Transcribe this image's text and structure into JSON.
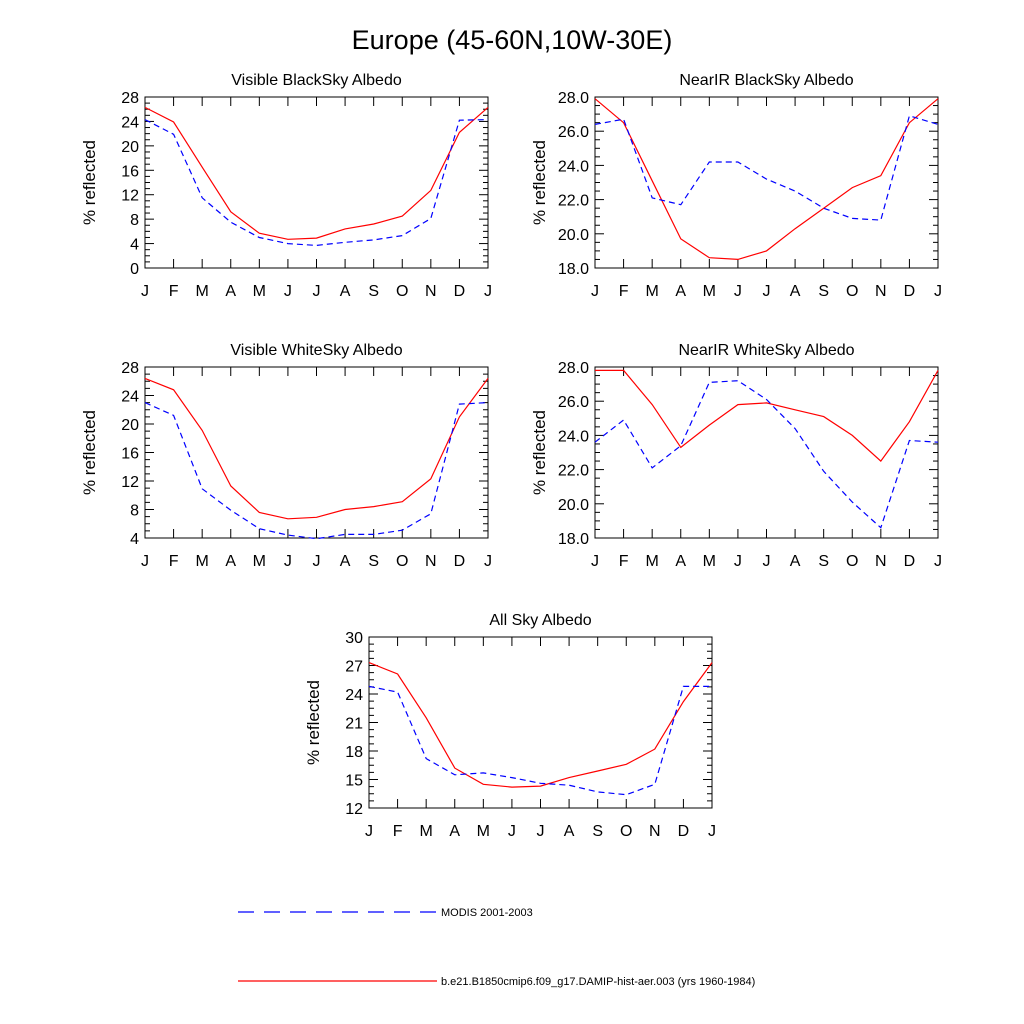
{
  "figure": {
    "title": "Europe (45-60N,10W-30E)"
  },
  "colors": {
    "model": "#ff0000",
    "modis": "#0000ff",
    "axis": "#000000"
  },
  "legend": [
    {
      "series_key": "modis",
      "label": "MODIS 2001-2003",
      "style": "dashed",
      "color": "#0000ff"
    },
    {
      "series_key": "model",
      "label": "b.e21.B1850cmip6.f09_g17.DAMIP-hist-aer.003 (yrs 1960-1984)",
      "style": "solid",
      "color": "#ff0000"
    }
  ],
  "chart_data": [
    {
      "type": "line",
      "title": "Visible BlackSky Albedo",
      "ylabel": "% reflected",
      "xlabel": "",
      "categories": [
        "J",
        "F",
        "M",
        "A",
        "M",
        "J",
        "J",
        "A",
        "S",
        "O",
        "N",
        "D",
        "J"
      ],
      "ylim": [
        0,
        28
      ],
      "yticks": [
        0,
        4,
        8,
        12,
        16,
        20,
        24,
        28
      ],
      "ytick_labels": [
        "0",
        "4",
        "8",
        "12",
        "16",
        "20",
        "24",
        "28"
      ],
      "series": [
        {
          "key": "model",
          "values": [
            26.3,
            23.9,
            16.5,
            9.2,
            5.7,
            4.7,
            4.9,
            6.4,
            7.2,
            8.5,
            12.7,
            22.2,
            26.3
          ]
        },
        {
          "key": "modis",
          "values": [
            24.3,
            21.9,
            11.5,
            7.5,
            5.0,
            4.0,
            3.7,
            4.2,
            4.6,
            5.3,
            8.1,
            24.2,
            24.3
          ]
        }
      ]
    },
    {
      "type": "line",
      "title": "NearIR BlackSky Albedo",
      "ylabel": "% reflected",
      "xlabel": "",
      "categories": [
        "J",
        "F",
        "M",
        "A",
        "M",
        "J",
        "J",
        "A",
        "S",
        "O",
        "N",
        "D",
        "J"
      ],
      "ylim": [
        18.0,
        28.0
      ],
      "yticks": [
        18,
        20,
        22,
        24,
        26,
        28
      ],
      "ytick_labels": [
        "18.0",
        "20.0",
        "22.0",
        "24.0",
        "26.0",
        "28.0"
      ],
      "series": [
        {
          "key": "model",
          "values": [
            27.9,
            26.5,
            23.1,
            19.7,
            18.6,
            18.5,
            19.0,
            20.3,
            21.5,
            22.7,
            23.4,
            26.5,
            27.9
          ]
        },
        {
          "key": "modis",
          "values": [
            26.4,
            26.7,
            22.1,
            21.7,
            24.2,
            24.2,
            23.2,
            22.5,
            21.5,
            20.9,
            20.8,
            26.9,
            26.4
          ]
        }
      ]
    },
    {
      "type": "line",
      "title": "Visible WhiteSky Albedo",
      "ylabel": "% reflected",
      "xlabel": "",
      "categories": [
        "J",
        "F",
        "M",
        "A",
        "M",
        "J",
        "J",
        "A",
        "S",
        "O",
        "N",
        "D",
        "J"
      ],
      "ylim": [
        4,
        28
      ],
      "yticks": [
        4,
        8,
        12,
        16,
        20,
        24,
        28
      ],
      "ytick_labels": [
        "4",
        "8",
        "12",
        "16",
        "20",
        "24",
        "28"
      ],
      "series": [
        {
          "key": "model",
          "values": [
            26.4,
            24.8,
            19.1,
            11.3,
            7.6,
            6.7,
            6.9,
            8.0,
            8.4,
            9.1,
            12.3,
            21.0,
            26.4
          ]
        },
        {
          "key": "modis",
          "values": [
            23.0,
            21.2,
            10.9,
            7.9,
            5.3,
            4.4,
            3.9,
            4.5,
            4.5,
            5.1,
            7.4,
            22.8,
            23.0
          ]
        }
      ]
    },
    {
      "type": "line",
      "title": "NearIR WhiteSky Albedo",
      "ylabel": "% reflected",
      "xlabel": "",
      "categories": [
        "J",
        "F",
        "M",
        "A",
        "M",
        "J",
        "J",
        "A",
        "S",
        "O",
        "N",
        "D",
        "J"
      ],
      "ylim": [
        18.0,
        28.0
      ],
      "yticks": [
        18,
        20,
        22,
        24,
        26,
        28
      ],
      "ytick_labels": [
        "18.0",
        "20.0",
        "22.0",
        "24.0",
        "26.0",
        "28.0"
      ],
      "series": [
        {
          "key": "model",
          "values": [
            27.8,
            27.8,
            25.8,
            23.3,
            24.6,
            25.8,
            25.9,
            25.5,
            25.1,
            24.0,
            22.5,
            24.8,
            27.8
          ]
        },
        {
          "key": "modis",
          "values": [
            23.6,
            24.9,
            22.1,
            23.4,
            27.1,
            27.2,
            26.1,
            24.4,
            21.9,
            20.1,
            18.6,
            23.7,
            23.6
          ]
        }
      ]
    },
    {
      "type": "line",
      "title": "All Sky Albedo",
      "ylabel": "% reflected",
      "xlabel": "",
      "categories": [
        "J",
        "F",
        "M",
        "A",
        "M",
        "J",
        "J",
        "A",
        "S",
        "O",
        "N",
        "D",
        "J"
      ],
      "ylim": [
        12,
        30
      ],
      "yticks": [
        12,
        15,
        18,
        21,
        24,
        27,
        30
      ],
      "ytick_labels": [
        "12",
        "15",
        "18",
        "21",
        "24",
        "27",
        "30"
      ],
      "series": [
        {
          "key": "model",
          "values": [
            27.3,
            26.1,
            21.5,
            16.2,
            14.5,
            14.2,
            14.3,
            15.2,
            15.9,
            16.6,
            18.2,
            23.2,
            27.3
          ]
        },
        {
          "key": "modis",
          "values": [
            24.8,
            24.2,
            17.2,
            15.5,
            15.7,
            15.2,
            14.6,
            14.4,
            13.7,
            13.4,
            14.5,
            24.8,
            24.8
          ]
        }
      ]
    }
  ]
}
